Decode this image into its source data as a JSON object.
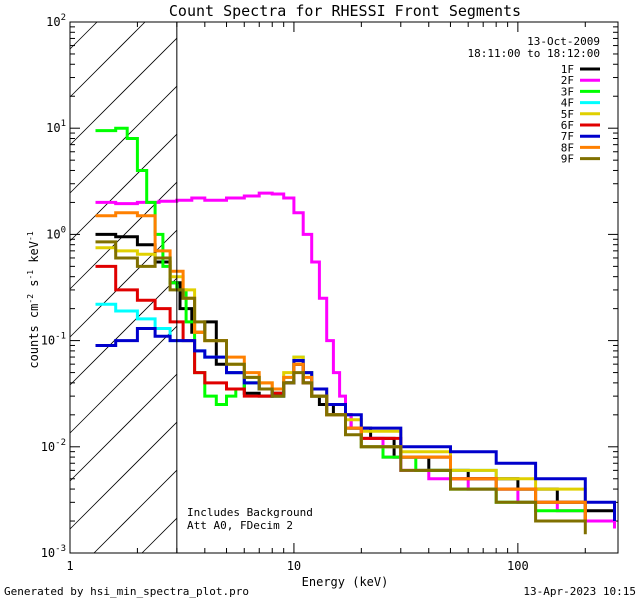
{
  "chart_data": {
    "type": "line",
    "scale": "log-log",
    "title": "Count Spectra for RHESSI Front Segments",
    "xlabel": "Energy (keV)",
    "ylabel_base": "counts cm",
    "ylabel_exp1": "-2",
    "ylabel_mid": " s",
    "ylabel_exp2": "-1",
    "ylabel_tail": " keV",
    "ylabel_exp3": "-1",
    "xlim": [
      1,
      280
    ],
    "ylim": [
      0.001,
      100
    ],
    "xticks": [
      {
        "value": 1,
        "label": "1"
      },
      {
        "value": 10,
        "label": "10"
      },
      {
        "value": 100,
        "label": "100"
      }
    ],
    "yticks": [
      {
        "value": 100,
        "base": "10",
        "exp": "2"
      },
      {
        "value": 10,
        "base": "10",
        "exp": "1"
      },
      {
        "value": 1,
        "base": "10",
        "exp": "0"
      },
      {
        "value": 0.1,
        "base": "10",
        "exp": "-1"
      },
      {
        "value": 0.01,
        "base": "10",
        "exp": "-2"
      },
      {
        "value": 0.001,
        "base": "10",
        "exp": "-3"
      }
    ],
    "shaded_region": {
      "from": 1,
      "to": 3,
      "style": "hatched"
    },
    "date": "13-Oct-2009",
    "time_range": "18:11:00 to 18:12:00",
    "annotation_lines": [
      "Includes Background",
      "Att A0, FDecim 2"
    ],
    "series": [
      {
        "name": "1F",
        "color": "#000000",
        "x": [
          1.3,
          1.6,
          2.0,
          2.4,
          2.8,
          3.1,
          3.5,
          4.0,
          4.5,
          5.0,
          6.0,
          7.0,
          8.0,
          9.0,
          10.0,
          11.0,
          12.0,
          13.0,
          15.0,
          18.0,
          22.0,
          28.0,
          40.0,
          60.0,
          100.0,
          150.0,
          200.0,
          270.0
        ],
        "y": [
          1.0,
          0.95,
          0.8,
          0.55,
          0.35,
          0.2,
          0.12,
          0.15,
          0.06,
          0.05,
          0.032,
          0.03,
          0.032,
          0.04,
          0.06,
          0.04,
          0.03,
          0.025,
          0.02,
          0.015,
          0.012,
          0.008,
          0.006,
          0.005,
          0.004,
          0.003,
          0.0025,
          0.002
        ]
      },
      {
        "name": "2F",
        "color": "#ff00ff",
        "x": [
          1.3,
          1.6,
          2.0,
          2.5,
          3.0,
          3.5,
          4.0,
          5.0,
          6.0,
          7.0,
          8.0,
          9.0,
          10.0,
          11.0,
          12.0,
          13.0,
          14.0,
          15.0,
          16.0,
          17.0,
          18.0,
          20.0,
          25.0,
          30.0,
          40.0,
          60.0,
          100.0,
          150.0,
          200.0,
          270.0
        ],
        "y": [
          2.0,
          1.95,
          2.0,
          2.05,
          2.1,
          2.2,
          2.1,
          2.2,
          2.3,
          2.45,
          2.4,
          2.2,
          1.6,
          1.0,
          0.55,
          0.25,
          0.1,
          0.05,
          0.03,
          0.02,
          0.015,
          0.012,
          0.008,
          0.006,
          0.005,
          0.004,
          0.003,
          0.0025,
          0.002,
          0.0017
        ]
      },
      {
        "name": "3F",
        "color": "#00ff00",
        "x": [
          1.3,
          1.6,
          1.8,
          2.0,
          2.2,
          2.4,
          2.6,
          2.8,
          3.0,
          3.3,
          3.6,
          4.0,
          4.5,
          5.0,
          5.5,
          6.0,
          7.0,
          8.0,
          9.0,
          10.0,
          11.0,
          12.0,
          14.0,
          17.0,
          20.0,
          25.0,
          35.0,
          50.0,
          80.0,
          120.0,
          200.0
        ],
        "y": [
          9.5,
          10.0,
          8.0,
          4.0,
          2.0,
          1.0,
          0.5,
          0.35,
          0.3,
          0.15,
          0.05,
          0.03,
          0.025,
          0.03,
          0.035,
          0.04,
          0.035,
          0.03,
          0.04,
          0.06,
          0.05,
          0.03,
          0.02,
          0.015,
          0.01,
          0.008,
          0.006,
          0.004,
          0.003,
          0.0025,
          0.002
        ]
      },
      {
        "name": "4F",
        "color": "#00ffff",
        "x": [
          1.3,
          1.6,
          2.0,
          2.4,
          2.8,
          3.2,
          3.6,
          4.0,
          5.0,
          6.0,
          7.0,
          8.0,
          9.0,
          10.0,
          11.0,
          12.0,
          14.0,
          17.0,
          20.0,
          30.0,
          50.0,
          80.0,
          120.0,
          200.0
        ],
        "y": [
          0.22,
          0.19,
          0.16,
          0.13,
          0.1,
          0.1,
          0.08,
          0.07,
          0.05,
          0.04,
          0.035,
          0.03,
          0.045,
          0.07,
          0.05,
          0.03,
          0.02,
          0.015,
          0.01,
          0.008,
          0.006,
          0.004,
          0.003,
          0.0025
        ]
      },
      {
        "name": "5F",
        "color": "#e0d000",
        "x": [
          1.3,
          1.6,
          2.0,
          2.4,
          2.8,
          3.2,
          3.6,
          4.0,
          5.0,
          6.0,
          7.0,
          8.0,
          9.0,
          10.0,
          11.0,
          12.0,
          14.0,
          17.0,
          20.0,
          30.0,
          50.0,
          80.0,
          120.0,
          200.0
        ],
        "y": [
          0.75,
          0.7,
          0.65,
          0.6,
          0.4,
          0.3,
          0.12,
          0.1,
          0.06,
          0.045,
          0.04,
          0.03,
          0.05,
          0.07,
          0.05,
          0.035,
          0.025,
          0.018,
          0.014,
          0.009,
          0.006,
          0.005,
          0.004,
          0.003
        ]
      },
      {
        "name": "6F",
        "color": "#e00000",
        "x": [
          1.3,
          1.6,
          2.0,
          2.4,
          2.8,
          3.2,
          3.6,
          4.0,
          5.0,
          6.0,
          7.0,
          8.0,
          9.0,
          10.0,
          11.0,
          12.0,
          14.0,
          17.0,
          20.0,
          30.0,
          50.0,
          80.0,
          120.0,
          200.0
        ],
        "y": [
          0.5,
          0.3,
          0.24,
          0.2,
          0.15,
          0.1,
          0.05,
          0.04,
          0.035,
          0.03,
          0.03,
          0.032,
          0.04,
          0.06,
          0.04,
          0.03,
          0.02,
          0.015,
          0.012,
          0.008,
          0.005,
          0.004,
          0.003,
          0.002
        ]
      },
      {
        "name": "7F",
        "color": "#0000cc",
        "x": [
          1.3,
          1.6,
          2.0,
          2.4,
          2.8,
          3.2,
          3.6,
          4.0,
          5.0,
          6.0,
          7.0,
          8.0,
          9.0,
          10.0,
          11.0,
          12.0,
          14.0,
          17.0,
          20.0,
          30.0,
          50.0,
          80.0,
          120.0,
          200.0,
          270.0
        ],
        "y": [
          0.09,
          0.1,
          0.13,
          0.11,
          0.1,
          0.1,
          0.08,
          0.07,
          0.05,
          0.04,
          0.035,
          0.03,
          0.04,
          0.065,
          0.05,
          0.035,
          0.025,
          0.02,
          0.015,
          0.01,
          0.009,
          0.007,
          0.005,
          0.003,
          0.002
        ]
      },
      {
        "name": "8F",
        "color": "#ff8000",
        "x": [
          1.3,
          1.6,
          2.0,
          2.4,
          2.8,
          3.2,
          3.6,
          4.0,
          5.0,
          6.0,
          7.0,
          8.0,
          9.0,
          10.0,
          11.0,
          12.0,
          14.0,
          17.0,
          20.0,
          30.0,
          50.0,
          80.0,
          120.0,
          200.0
        ],
        "y": [
          1.5,
          1.6,
          1.5,
          0.7,
          0.45,
          0.25,
          0.12,
          0.1,
          0.07,
          0.05,
          0.04,
          0.035,
          0.045,
          0.06,
          0.045,
          0.03,
          0.02,
          0.015,
          0.01,
          0.008,
          0.005,
          0.004,
          0.003,
          0.002
        ]
      },
      {
        "name": "9F",
        "color": "#807000",
        "x": [
          1.3,
          1.6,
          2.0,
          2.4,
          2.8,
          3.2,
          3.6,
          4.0,
          5.0,
          6.0,
          7.0,
          8.0,
          9.0,
          10.0,
          11.0,
          12.0,
          14.0,
          17.0,
          20.0,
          30.0,
          50.0,
          80.0,
          120.0,
          200.0
        ],
        "y": [
          0.85,
          0.6,
          0.5,
          0.6,
          0.3,
          0.25,
          0.15,
          0.1,
          0.06,
          0.045,
          0.035,
          0.03,
          0.04,
          0.05,
          0.04,
          0.03,
          0.02,
          0.013,
          0.01,
          0.006,
          0.004,
          0.003,
          0.002,
          0.0015
        ]
      }
    ]
  },
  "footer": {
    "generated_by": "Generated by hsi_min_spectra_plot.pro",
    "timestamp": "13-Apr-2023 10:15"
  }
}
